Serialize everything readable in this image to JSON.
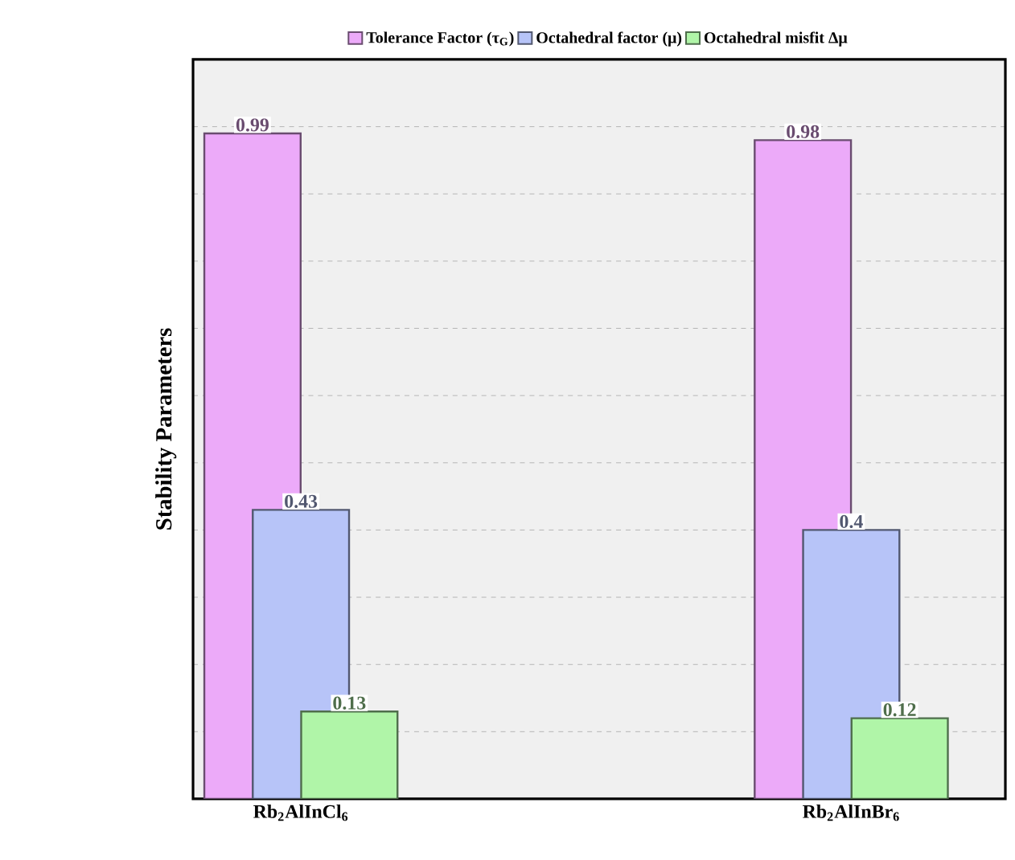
{
  "chart_data": {
    "type": "bar",
    "ylabel": "Stability Parameters",
    "categories": [
      "Rb$_{2}$AlInCl$_{6}$",
      "Rb$_{2}$AlInBr$_{6}$"
    ],
    "series": [
      {
        "name": "Tolerance Factor (τ$_{G}$)",
        "color": "#ecaaf9",
        "values": [
          0.99,
          0.98
        ]
      },
      {
        "name": "Octahedral factor (μ)",
        "color": "#b7c4f8",
        "values": [
          0.43,
          0.4
        ]
      },
      {
        "name": "Octahedral misfit Δμ",
        "color": "#b0f5a8",
        "values": [
          0.13,
          0.12
        ]
      }
    ],
    "ylim": [
      0,
      1.1
    ],
    "yticks": [
      {
        "value": 0.1,
        "label": null
      },
      {
        "value": 0.2,
        "label": null
      },
      {
        "value": 0.3,
        "label": null
      },
      {
        "value": 0.4,
        "label": null
      },
      {
        "value": 0.5,
        "label": null
      },
      {
        "value": 0.6,
        "label": null
      },
      {
        "value": 0.7,
        "label": null
      },
      {
        "value": 0.8,
        "label": null
      },
      {
        "value": 0.9,
        "label": null
      },
      {
        "value": 1.0,
        "label": null
      }
    ],
    "tick_labels": "x",
    "grid": "y",
    "legend": "top",
    "data_labels": true
  }
}
